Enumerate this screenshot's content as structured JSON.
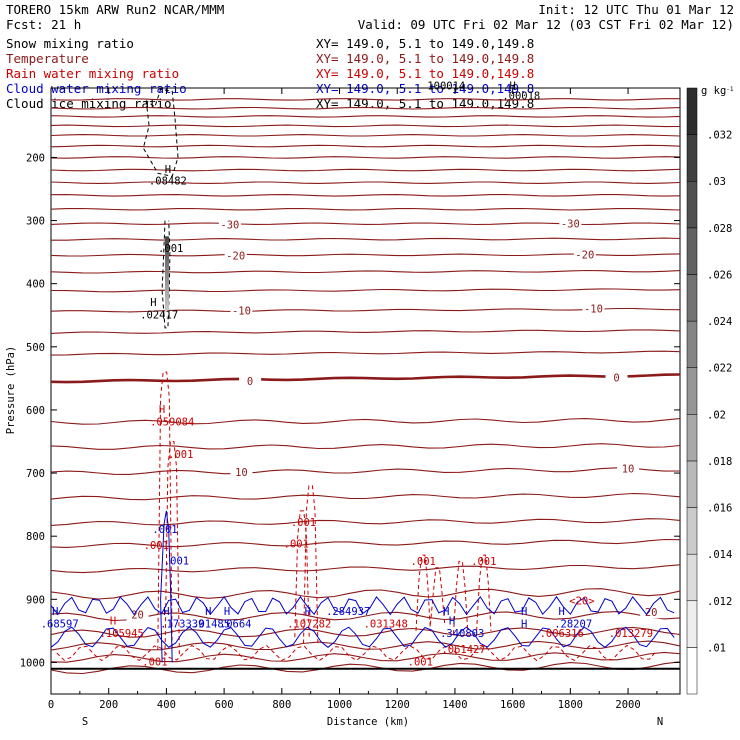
{
  "header": {
    "model": "TORERO  15km ARW   Run2    NCAR/MMM",
    "fcst": "Fcst:   21 h",
    "init": "Init: 12 UTC Thu 01 Mar 12",
    "valid": "Valid: 09 UTC Fri 02 Mar 12 (03 CST Fri 02 Mar 12)"
  },
  "legend": [
    {
      "name": "Snow mixing ratio",
      "range": "XY= 149.0,  5.1 to 149.0,149.8",
      "color": "#000000"
    },
    {
      "name": "Temperature",
      "range": "XY= 149.0,  5.1 to 149.0,149.8",
      "color": "#8b1a1a"
    },
    {
      "name": "Rain water mixing ratio",
      "range": "XY= 149.0,  5.1 to 149.0,149.8",
      "color": "#cc0000"
    },
    {
      "name": "Cloud water mixing ratio",
      "range": "XY= 149.0,  5.1 to 149.0,149.8",
      "color": "#0000cc"
    },
    {
      "name": "Cloud ice mixing ratio",
      "range": "XY= 149.0,  5.1 to 149.0,149.8",
      "color": "#000000"
    }
  ],
  "chart_data": {
    "type": "line",
    "xlabel": "Distance (km)",
    "ylabel": "Pressure (hPa)",
    "xlim": [
      0,
      2180
    ],
    "ylim": [
      1050,
      90
    ],
    "x_ticks": [
      0,
      200,
      400,
      600,
      800,
      1000,
      1200,
      1400,
      1600,
      1800,
      2000
    ],
    "x_tick_labels": [
      "0",
      "200",
      "400",
      "600",
      "800",
      "1000",
      "1200",
      "1400",
      "1600",
      "1800",
      "2000"
    ],
    "y_ticks": [
      200,
      300,
      400,
      500,
      600,
      700,
      800,
      900,
      1000
    ],
    "y_tick_labels": [
      "200",
      "300",
      "400",
      "500",
      "600",
      "700",
      "800",
      "900",
      "1000"
    ],
    "orientation": {
      "left": "S",
      "right": "N"
    },
    "colorbar": {
      "unit": "g kg",
      "unit_exp": "-1",
      "labels": [
        ".01",
        ".012",
        ".014",
        ".016",
        ".018",
        ".02",
        ".022",
        ".024",
        ".026",
        ".028",
        ".03",
        ".032"
      ]
    },
    "temperature_isotherms": [
      {
        "p_left": 1012,
        "p_right": 1005
      },
      {
        "p_left": 994,
        "p_right": 990
      },
      {
        "p_left": 975,
        "p_right": 972
      },
      {
        "p_left": 955,
        "p_right": 950
      },
      {
        "p_left": 928,
        "p_right": 925,
        "label": "20",
        "label_positions": [
          [
            300,
            926
          ],
          [
            2080,
            922
          ]
        ]
      },
      {
        "p_left": 894,
        "p_right": 888
      },
      {
        "p_left": 855,
        "p_right": 848
      },
      {
        "p_left": 815,
        "p_right": 808
      },
      {
        "p_left": 780,
        "p_right": 775
      },
      {
        "p_left": 740,
        "p_right": 735
      },
      {
        "p_left": 700,
        "p_right": 694,
        "label": "10",
        "label_positions": [
          [
            660,
            700
          ],
          [
            2000,
            694
          ]
        ]
      },
      {
        "p_left": 660,
        "p_right": 656
      },
      {
        "p_left": 620,
        "p_right": 616
      },
      {
        "p_left": 555,
        "p_right": 545,
        "label": "0",
        "label_positions": [
          [
            690,
            556
          ],
          [
            1960,
            550
          ]
        ],
        "bold": true
      },
      {
        "p_left": 512,
        "p_right": 508
      },
      {
        "p_left": 478,
        "p_right": 474
      },
      {
        "p_left": 444,
        "p_right": 440,
        "label": "-10",
        "label_positions": [
          [
            660,
            444
          ],
          [
            1880,
            441
          ]
        ]
      },
      {
        "p_left": 412,
        "p_right": 409
      },
      {
        "p_left": 382,
        "p_right": 380
      },
      {
        "p_left": 355,
        "p_right": 354,
        "label": "-20",
        "label_positions": [
          [
            640,
            357
          ],
          [
            1850,
            355
          ]
        ]
      },
      {
        "p_left": 330,
        "p_right": 329
      },
      {
        "p_left": 305,
        "p_right": 305,
        "label": "-30",
        "label_positions": [
          [
            620,
            308
          ],
          [
            1800,
            306
          ]
        ]
      },
      {
        "p_left": 282,
        "p_right": 282
      },
      {
        "p_left": 260,
        "p_right": 260
      },
      {
        "p_left": 240,
        "p_right": 240
      },
      {
        "p_left": 220,
        "p_right": 220
      },
      {
        "p_left": 200,
        "p_right": 200
      },
      {
        "p_left": 182,
        "p_right": 182
      },
      {
        "p_left": 165,
        "p_right": 165
      },
      {
        "p_left": 150,
        "p_right": 150
      },
      {
        "p_left": 135,
        "p_right": 135
      },
      {
        "p_left": 122,
        "p_right": 122
      },
      {
        "p_left": 108,
        "p_right": 108
      }
    ],
    "annotations": [
      {
        "text": "H",
        "x": 405,
        "p": 225,
        "color": "#000000"
      },
      {
        "text": ".08482",
        "x": 405,
        "p": 243,
        "color": "#000000"
      },
      {
        "text": ".001",
        "x": 415,
        "p": 350,
        "color": "#000000"
      },
      {
        "text": "H",
        "x": 355,
        "p": 435,
        "color": "#000000"
      },
      {
        "text": ".02417",
        "x": 375,
        "p": 455,
        "color": "#000000"
      },
      {
        "text": "H",
        "x": 1600,
        "p": 92,
        "color": "#000000"
      },
      {
        "text": "100014",
        "x": 1370,
        "p": 92,
        "color": "#000000"
      },
      {
        "text": ".00018",
        "x": 1630,
        "p": 108,
        "color": "#000000"
      },
      {
        "text": "H",
        "x": 385,
        "p": 605,
        "color": "#cc0000"
      },
      {
        "text": ".059084",
        "x": 420,
        "p": 625,
        "color": "#cc0000"
      },
      {
        "text": ".001",
        "x": 450,
        "p": 676,
        "color": "#cc0000"
      },
      {
        "text": ".001",
        "x": 875,
        "p": 784,
        "color": "#cc0000"
      },
      {
        "text": ".001",
        "x": 850,
        "p": 818,
        "color": "#cc0000"
      },
      {
        "text": ".001",
        "x": 365,
        "p": 820,
        "color": "#cc0000"
      },
      {
        "text": ".001",
        "x": 1290,
        "p": 846,
        "color": "#cc0000"
      },
      {
        "text": ".001",
        "x": 1500,
        "p": 846,
        "color": "#cc0000"
      },
      {
        "text": "<20>",
        "x": 1840,
        "p": 908,
        "color": "#cc0000"
      },
      {
        "text": ".001",
        "x": 395,
        "p": 795,
        "color": "#0000cc"
      },
      {
        "text": ".001",
        "x": 435,
        "p": 845,
        "color": "#0000cc"
      },
      {
        "text": "H",
        "x": 15,
        "p": 925,
        "color": "#0000cc"
      },
      {
        "text": ".68597",
        "x": 30,
        "p": 945,
        "color": "#0000cc"
      },
      {
        "text": "H",
        "x": 215,
        "p": 940,
        "color": "#cc0000"
      },
      {
        "text": ".105945",
        "x": 245,
        "p": 960,
        "color": "#cc0000"
      },
      {
        "text": "H",
        "x": 400,
        "p": 925,
        "color": "#0000cc"
      },
      {
        "text": ".173339",
        "x": 455,
        "p": 945,
        "color": "#0000cc"
      },
      {
        "text": "H",
        "x": 545,
        "p": 925,
        "color": "#0000cc"
      },
      {
        "text": "H",
        "x": 610,
        "p": 925,
        "color": "#0000cc"
      },
      {
        "text": ".01485",
        "x": 555,
        "p": 945,
        "color": "#0000cc"
      },
      {
        "text": ".0664",
        "x": 640,
        "p": 945,
        "color": "#0000cc"
      },
      {
        "text": "H",
        "x": 890,
        "p": 925,
        "color": "#0000cc"
      },
      {
        "text": ".284937",
        "x": 1030,
        "p": 925,
        "color": "#0000cc"
      },
      {
        "text": ".107282",
        "x": 895,
        "p": 945,
        "color": "#cc0000"
      },
      {
        "text": ".031348",
        "x": 1160,
        "p": 945,
        "color": "#cc0000"
      },
      {
        "text": "H",
        "x": 1390,
        "p": 940,
        "color": "#0000cc"
      },
      {
        "text": ".340803",
        "x": 1425,
        "p": 960,
        "color": "#0000cc"
      },
      {
        "text": "H",
        "x": 1640,
        "p": 945,
        "color": "#0000cc"
      },
      {
        "text": "H",
        "x": 1770,
        "p": 925,
        "color": "#0000cc"
      },
      {
        "text": ".28207",
        "x": 1810,
        "p": 945,
        "color": "#0000cc"
      },
      {
        "text": ".006316",
        "x": 1770,
        "p": 960,
        "color": "#cc0000"
      },
      {
        "text": ".013279",
        "x": 2010,
        "p": 960,
        "color": "#cc0000"
      },
      {
        "text": ".061427",
        "x": 1430,
        "p": 985,
        "color": "#cc0000"
      },
      {
        "text": ".001",
        "x": 360,
        "p": 1005,
        "color": "#cc0000"
      },
      {
        "text": ".001",
        "x": 1280,
        "p": 1005,
        "color": "#cc0000"
      },
      {
        "text": "H",
        "x": 1640,
        "p": 925,
        "color": "#0000cc"
      },
      {
        "text": "H",
        "x": 1370,
        "p": 925,
        "color": "#0000cc"
      }
    ]
  }
}
